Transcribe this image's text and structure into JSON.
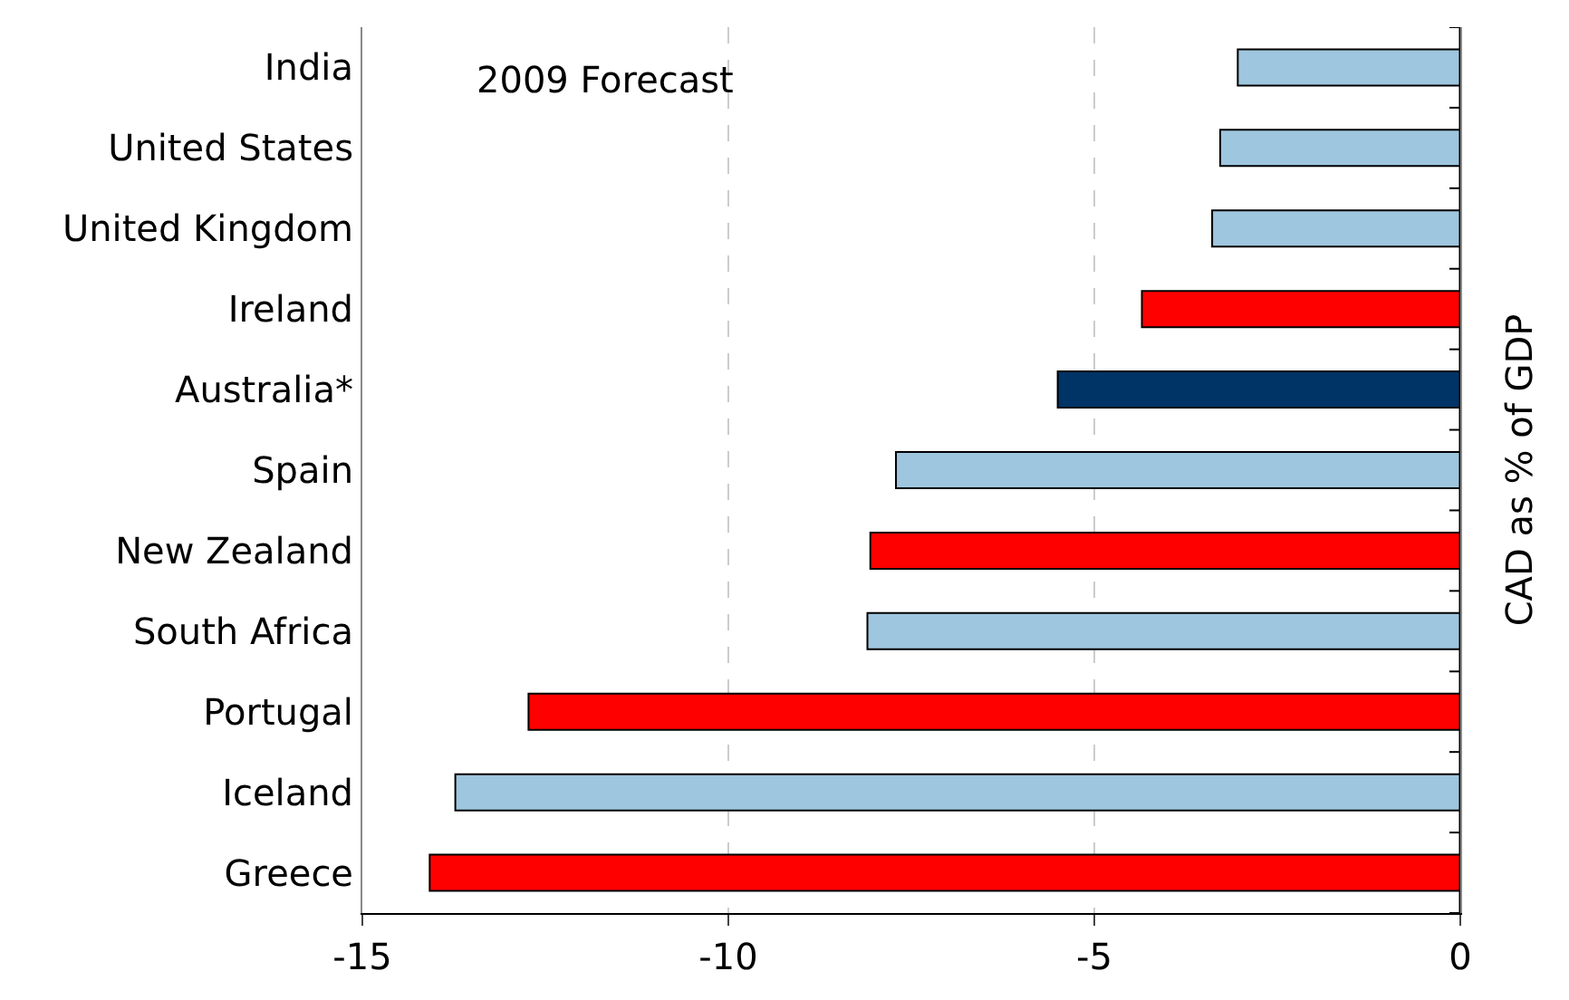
{
  "chart_data": {
    "type": "bar",
    "orientation": "horizontal",
    "categories": [
      "India",
      "United States",
      "United Kingdom",
      "Ireland",
      "Australia*",
      "Spain",
      "New Zealand",
      "South Africa",
      "Portugal",
      "Iceland",
      "Greece"
    ],
    "values": [
      -3.04,
      -3.28,
      -3.39,
      -4.35,
      -5.5,
      -7.71,
      -8.06,
      -8.1,
      -12.73,
      -13.73,
      -14.08
    ],
    "colors": [
      "#9ec6de",
      "#9ec6de",
      "#9ec6de",
      "#ff0000",
      "#003366",
      "#9ec6de",
      "#ff0000",
      "#9ec6de",
      "#ff0000",
      "#9ec6de",
      "#ff0000"
    ],
    "ylabel": "CAD as % of GDP",
    "annotations": [
      "2009 Forecast"
    ],
    "xlim": [
      -15,
      0
    ],
    "xticks": [
      -15,
      -10,
      -5,
      0
    ],
    "grid": "x"
  }
}
